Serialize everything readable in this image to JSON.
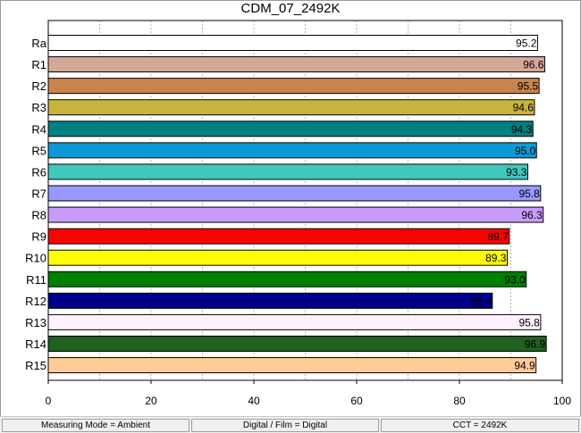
{
  "chart_data": {
    "type": "bar",
    "orientation": "horizontal",
    "title": "CDM_07_2492K",
    "categories": [
      "Ra",
      "R1",
      "R2",
      "R3",
      "R4",
      "R5",
      "R6",
      "R7",
      "R8",
      "R9",
      "R10",
      "R11",
      "R12",
      "R13",
      "R14",
      "R15"
    ],
    "values": [
      95.2,
      96.6,
      95.5,
      94.6,
      94.3,
      95.0,
      93.3,
      95.8,
      96.3,
      89.7,
      89.3,
      93.0,
      86.4,
      95.8,
      96.9,
      94.9
    ],
    "value_labels": [
      "95.2",
      "96.6",
      "95.5",
      "94.6",
      "94.3",
      "95.0",
      "93.3",
      "95.8",
      "96.3",
      "89.7",
      "89.3",
      "93.0",
      "86.4",
      "95.8",
      "96.9",
      "94.9"
    ],
    "colors": [
      "#ffffff",
      "#d4a898",
      "#c8844c",
      "#c8b43c",
      "#008080",
      "#0c9ad6",
      "#40c8bc",
      "#9898ff",
      "#c89cff",
      "#ff0000",
      "#ffff00",
      "#008000",
      "#000088",
      "#fff0ff",
      "#206020",
      "#ffcc98"
    ],
    "xlim": [
      0,
      100
    ],
    "xticks": [
      "0",
      "20",
      "40",
      "60",
      "80",
      "100"
    ],
    "grid": true,
    "xlabel": "",
    "ylabel": ""
  },
  "status_bar": {
    "measuring_mode": "Measuring Mode = Ambient",
    "digital_film": "Digital / Film = Digital",
    "cct": "CCT = 2492K"
  }
}
